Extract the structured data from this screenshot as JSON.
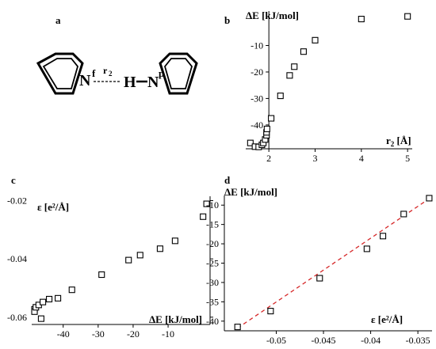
{
  "panels": {
    "a": {
      "letter": "a",
      "atom_N": "N",
      "atom_H": "H",
      "sup_left": "f",
      "sup_right": "p",
      "bond_label": "r",
      "bond_sub": "2"
    }
  },
  "chart_data": [
    {
      "id": "b",
      "letter": "b",
      "type": "scatter",
      "ylabel": "ΔE [kJ/mol]",
      "xlabel": "r",
      "xlabel_sub": "2",
      "xlabel_unit": " [Å]",
      "xlim": [
        1.5,
        5.1
      ],
      "ylim": [
        -49,
        3
      ],
      "xticks": [
        2,
        3,
        4,
        5
      ],
      "yticks": [
        -10,
        -20,
        -30,
        -40
      ],
      "points": [
        [
          1.6,
          -46.8
        ],
        [
          1.7,
          -48.2
        ],
        [
          1.78,
          -48.3
        ],
        [
          1.85,
          -47.5
        ],
        [
          1.88,
          -46.8
        ],
        [
          1.92,
          -45.5
        ],
        [
          1.95,
          -43.9
        ],
        [
          1.95,
          -42.8
        ],
        [
          1.96,
          -41.5
        ],
        [
          2.05,
          -37.5
        ],
        [
          2.25,
          -29.0
        ],
        [
          2.45,
          -21.3
        ],
        [
          2.55,
          -18.0
        ],
        [
          2.75,
          -12.3
        ],
        [
          3.0,
          -8.0
        ],
        [
          4.0,
          0.0
        ],
        [
          5.0,
          1.0
        ]
      ]
    },
    {
      "id": "c",
      "letter": "c",
      "type": "scatter",
      "ylabel": "ε [e²/Å]",
      "xlabel": "ΔE [kJ/mol]",
      "xlim": [
        -49,
        2
      ],
      "ylim": [
        -0.0625,
        -0.0185
      ],
      "xticks": [
        -40,
        -30,
        -20,
        -10
      ],
      "yticks": [
        -0.02,
        -0.04,
        -0.06
      ],
      "points": [
        [
          -48.2,
          -0.0573
        ],
        [
          -48.2,
          -0.0581
        ],
        [
          -47.8,
          -0.0566
        ],
        [
          -47.0,
          -0.0558
        ],
        [
          -46.3,
          -0.0605
        ],
        [
          -45.8,
          -0.0548
        ],
        [
          -44.0,
          -0.0538
        ],
        [
          -41.5,
          -0.0535
        ],
        [
          -37.5,
          -0.0506
        ],
        [
          -29.0,
          -0.0454
        ],
        [
          -21.3,
          -0.0404
        ],
        [
          -18.0,
          -0.0387
        ],
        [
          -12.3,
          -0.0365
        ],
        [
          -8.0,
          -0.0338
        ],
        [
          0.0,
          -0.0255
        ],
        [
          1.0,
          -0.0211
        ]
      ]
    },
    {
      "id": "d",
      "letter": "d",
      "type": "scatter",
      "ylabel": "ΔE [kJ/mol]",
      "xlabel": "ε [e²/Å]",
      "xlim": [
        -0.0555,
        -0.0335
      ],
      "ylim": [
        -42.5,
        -7.5
      ],
      "xticks": [
        -0.05,
        -0.045,
        -0.04,
        -0.035
      ],
      "yticks": [
        -10,
        -15,
        -20,
        -25,
        -30,
        -35,
        -40
      ],
      "points": [
        [
          -0.0541,
          -41.5
        ],
        [
          -0.0506,
          -37.4
        ],
        [
          -0.0454,
          -28.9
        ],
        [
          -0.0404,
          -21.3
        ],
        [
          -0.0387,
          -18.0
        ],
        [
          -0.0365,
          -12.3
        ],
        [
          -0.0338,
          -8.2
        ]
      ],
      "fit_line": {
        "x": [
          -0.0541,
          -0.0336
        ],
        "y": [
          -41.8,
          -8.0
        ],
        "color": "#d62728"
      }
    }
  ],
  "colors": {
    "axis": "#000000",
    "marker_edge": "#000000",
    "fit": "#d62728"
  }
}
